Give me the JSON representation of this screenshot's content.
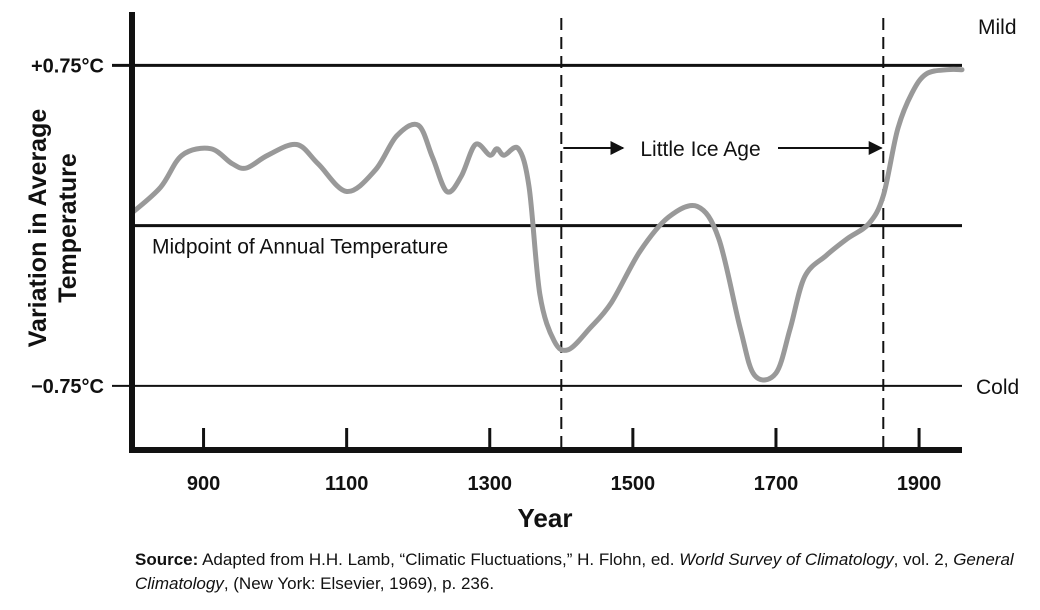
{
  "chart_data": {
    "type": "line",
    "title": "",
    "xlabel": "Year",
    "ylabel": [
      "Variation in Average",
      "Temperature"
    ],
    "xlim": [
      800,
      1960
    ],
    "ylim": [
      -1.05,
      1.0
    ],
    "x_ticks": [
      900,
      1100,
      1300,
      1500,
      1700,
      1900
    ],
    "x_tick_labels": [
      "900",
      "1100",
      "1300",
      "1500",
      "1700",
      "1900"
    ],
    "y_reference_lines": [
      {
        "value": 0.75,
        "label": "+0.75°C",
        "right_label": "Mild"
      },
      {
        "value": 0.0,
        "label": "",
        "right_label": "",
        "annotation": "Midpoint of Annual Temperature"
      },
      {
        "value": -0.75,
        "label": "−0.75°C",
        "right_label": "Cold"
      }
    ],
    "period": {
      "start": 1400,
      "end": 1850,
      "label": "Little Ice Age"
    },
    "series": [
      {
        "name": "Temperature variation",
        "color": "#999999",
        "x": [
          800,
          840,
          870,
          910,
          940,
          960,
          990,
          1030,
          1060,
          1100,
          1140,
          1170,
          1200,
          1220,
          1240,
          1260,
          1280,
          1300,
          1310,
          1320,
          1340,
          1355,
          1370,
          1390,
          1410,
          1440,
          1470,
          1510,
          1550,
          1590,
          1620,
          1650,
          1670,
          1700,
          1720,
          1740,
          1770,
          1800,
          1830,
          1850,
          1870,
          1890,
          1910,
          1940,
          1960
        ],
        "y": [
          0.06,
          0.18,
          0.33,
          0.36,
          0.29,
          0.27,
          0.33,
          0.38,
          0.29,
          0.16,
          0.26,
          0.42,
          0.47,
          0.32,
          0.16,
          0.23,
          0.38,
          0.33,
          0.36,
          0.33,
          0.36,
          0.18,
          -0.32,
          -0.54,
          -0.58,
          -0.48,
          -0.36,
          -0.12,
          0.04,
          0.09,
          -0.06,
          -0.48,
          -0.7,
          -0.69,
          -0.48,
          -0.24,
          -0.14,
          -0.06,
          0.01,
          0.14,
          0.45,
          0.62,
          0.71,
          0.73,
          0.73
        ]
      }
    ]
  },
  "source": {
    "label": "Source:",
    "part1": " Adapted from H.H. Lamb, “Climatic Fluctuations,” H. Flohn, ed. ",
    "title1": "World Survey of Climatology",
    "part2": ", vol. 2, ",
    "title2": "General Climatology",
    "part3": ", (New York: Elsevier, 1969), p. 236."
  }
}
